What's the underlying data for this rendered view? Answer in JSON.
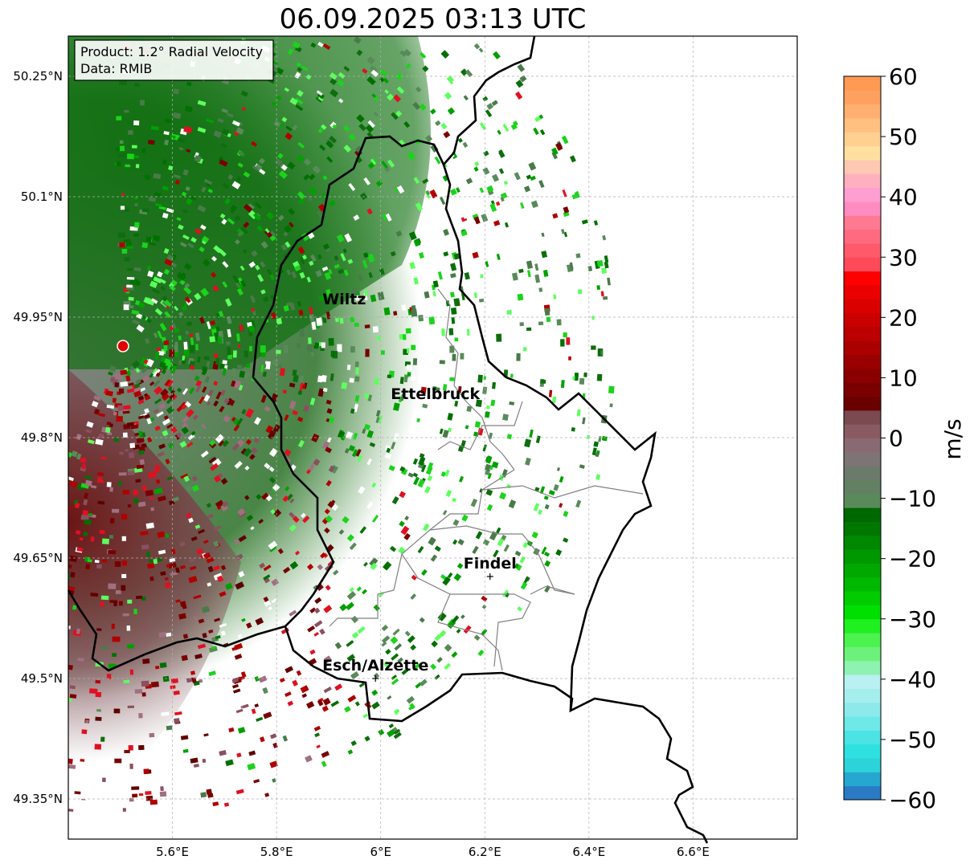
{
  "title": "06.09.2025 03:13 UTC",
  "info_box": {
    "product": "Product: 1.2° Radial Velocity",
    "data": "Data: RMIB"
  },
  "map": {
    "lon_range": [
      5.4,
      6.8
    ],
    "lat_range": [
      49.3,
      50.3
    ],
    "lon_ticks": [
      "5.6°E",
      "5.8°E",
      "6°E",
      "6.2°E",
      "6.4°E",
      "6.6°E"
    ],
    "lat_ticks": [
      "50.25°N",
      "50.1°N",
      "49.95°N",
      "49.8°N",
      "49.65°N",
      "49.5°N",
      "49.35°N"
    ],
    "radar_site": {
      "lon": 5.505,
      "lat": 49.914
    },
    "cities": [
      {
        "name": "Wiltz",
        "lon": 5.93,
        "lat": 49.966,
        "marker": false
      },
      {
        "name": "Ettelbruck",
        "lon": 6.105,
        "lat": 49.848,
        "marker": false
      },
      {
        "name": "Findel",
        "lon": 6.21,
        "lat": 49.627,
        "marker": true
      },
      {
        "name": "Esch/Alzette",
        "lon": 5.99,
        "lat": 49.5,
        "marker": true
      }
    ],
    "grid": true
  },
  "colorbar": {
    "label": "m/s",
    "ticks": [
      "60",
      "50",
      "40",
      "30",
      "20",
      "10",
      "0",
      "−10",
      "−20",
      "−30",
      "−40",
      "−50",
      "−60"
    ],
    "range": [
      -60,
      60
    ]
  },
  "colors": {
    "border": "#000000",
    "canton": "#808080",
    "outbound": "#c00000",
    "inbound": "#008000",
    "site": "#e00000"
  }
}
